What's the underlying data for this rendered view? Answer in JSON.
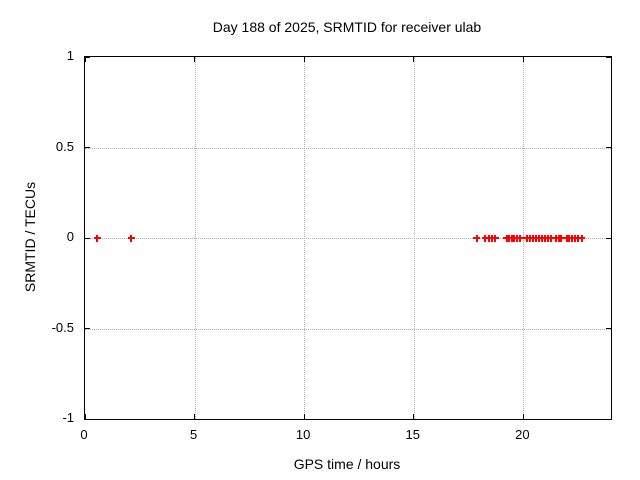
{
  "chart_data": {
    "type": "scatter",
    "title": "Day 188 of 2025, SRMTID for receiver ulab",
    "xlabel": "GPS time / hours",
    "ylabel": "SRMTID / TECUs",
    "xlim": [
      0,
      24
    ],
    "ylim": [
      -1,
      1
    ],
    "xticks": [
      0,
      5,
      10,
      15,
      20
    ],
    "xtick_labels": [
      "0",
      "5",
      "10",
      "15",
      "20"
    ],
    "yticks": [
      1,
      0.5,
      0,
      -0.5,
      -1
    ],
    "ytick_labels": [
      "1",
      "0.5",
      "0",
      "-0.5",
      "-1"
    ],
    "grid": "dotted",
    "ticks_mirrored": true,
    "legend_position": "none",
    "marker": "plus",
    "series": [
      {
        "name": "SRMTID",
        "color": "#ff0000",
        "x": [
          0.55,
          2.1,
          17.87,
          18.26,
          18.45,
          18.56,
          18.72,
          19.25,
          19.36,
          19.47,
          19.59,
          19.7,
          19.84,
          20.16,
          20.3,
          20.42,
          20.56,
          20.7,
          20.83,
          20.97,
          21.11,
          21.24,
          21.47,
          21.61,
          21.74,
          21.97,
          22.1,
          22.22,
          22.35,
          22.49,
          22.67
        ],
        "y": [
          0,
          0,
          0,
          0,
          0,
          0,
          0,
          0,
          0,
          0,
          0,
          0,
          0,
          0,
          0,
          0,
          0,
          0,
          0,
          0,
          0,
          0,
          0,
          0,
          0,
          0,
          0,
          0,
          0,
          0,
          0
        ]
      }
    ]
  },
  "colors": {
    "background": "#ffffff",
    "axis": "#000000",
    "grid": "#b0b0b0",
    "marker": "#ff0000",
    "text": "#000000"
  }
}
